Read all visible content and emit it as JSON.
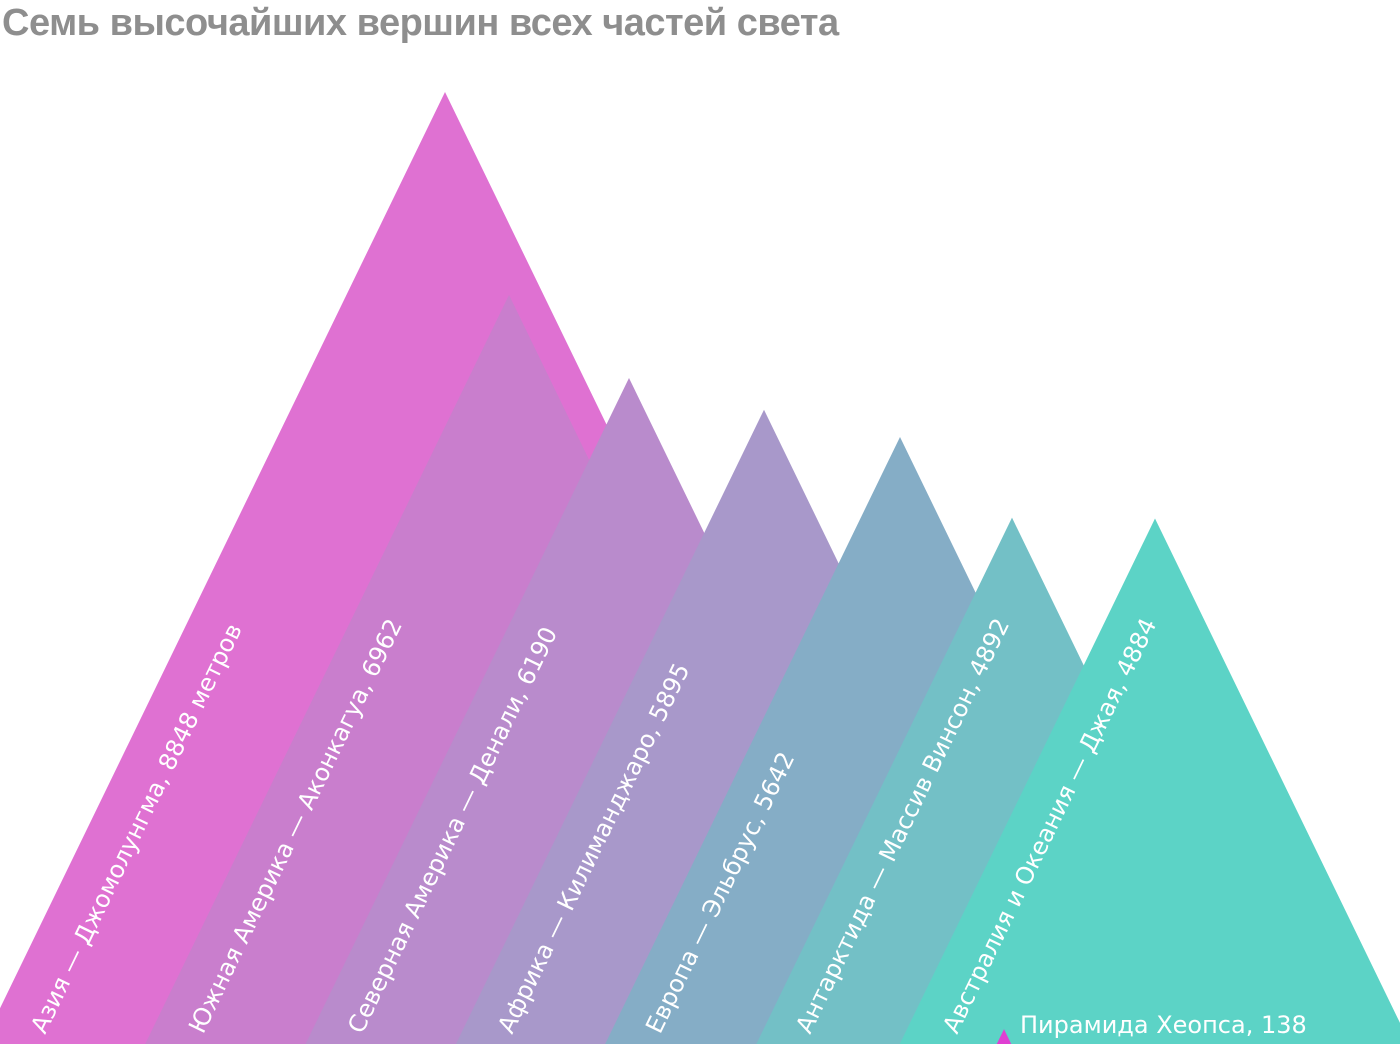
{
  "title": "Семь высочайших вершин всех частей света",
  "chart_data": {
    "type": "area",
    "title": "Семь высочайших вершин всех частей света",
    "series": [
      {
        "label": "Азия — Джомолунгма, 8848 метров",
        "value": 8848,
        "color": "#df71d2"
      },
      {
        "label": "Южная Америка — Аконкагуа, 6962",
        "value": 6962,
        "color": "#c97ecd"
      },
      {
        "label": "Северная Америка — Денали, 6190",
        "value": 6190,
        "color": "#b98bcc"
      },
      {
        "label": "Африка — Килиманджаро, 5895",
        "value": 5895,
        "color": "#a898ca"
      },
      {
        "label": "Европа — Эльбрус, 5642",
        "value": 5642,
        "color": "#85adc6"
      },
      {
        "label": "Антарктида — Массив Винсон, 4892",
        "value": 4892,
        "color": "#73c0c6"
      },
      {
        "label": "Австралия и Океания — Джая, 4884",
        "value": 4884,
        "color": "#5cd3c6"
      }
    ],
    "reference": {
      "label": "Пирамида Хеопса, 138",
      "value": 138,
      "color": "#df3fd2"
    },
    "units": "метров"
  }
}
